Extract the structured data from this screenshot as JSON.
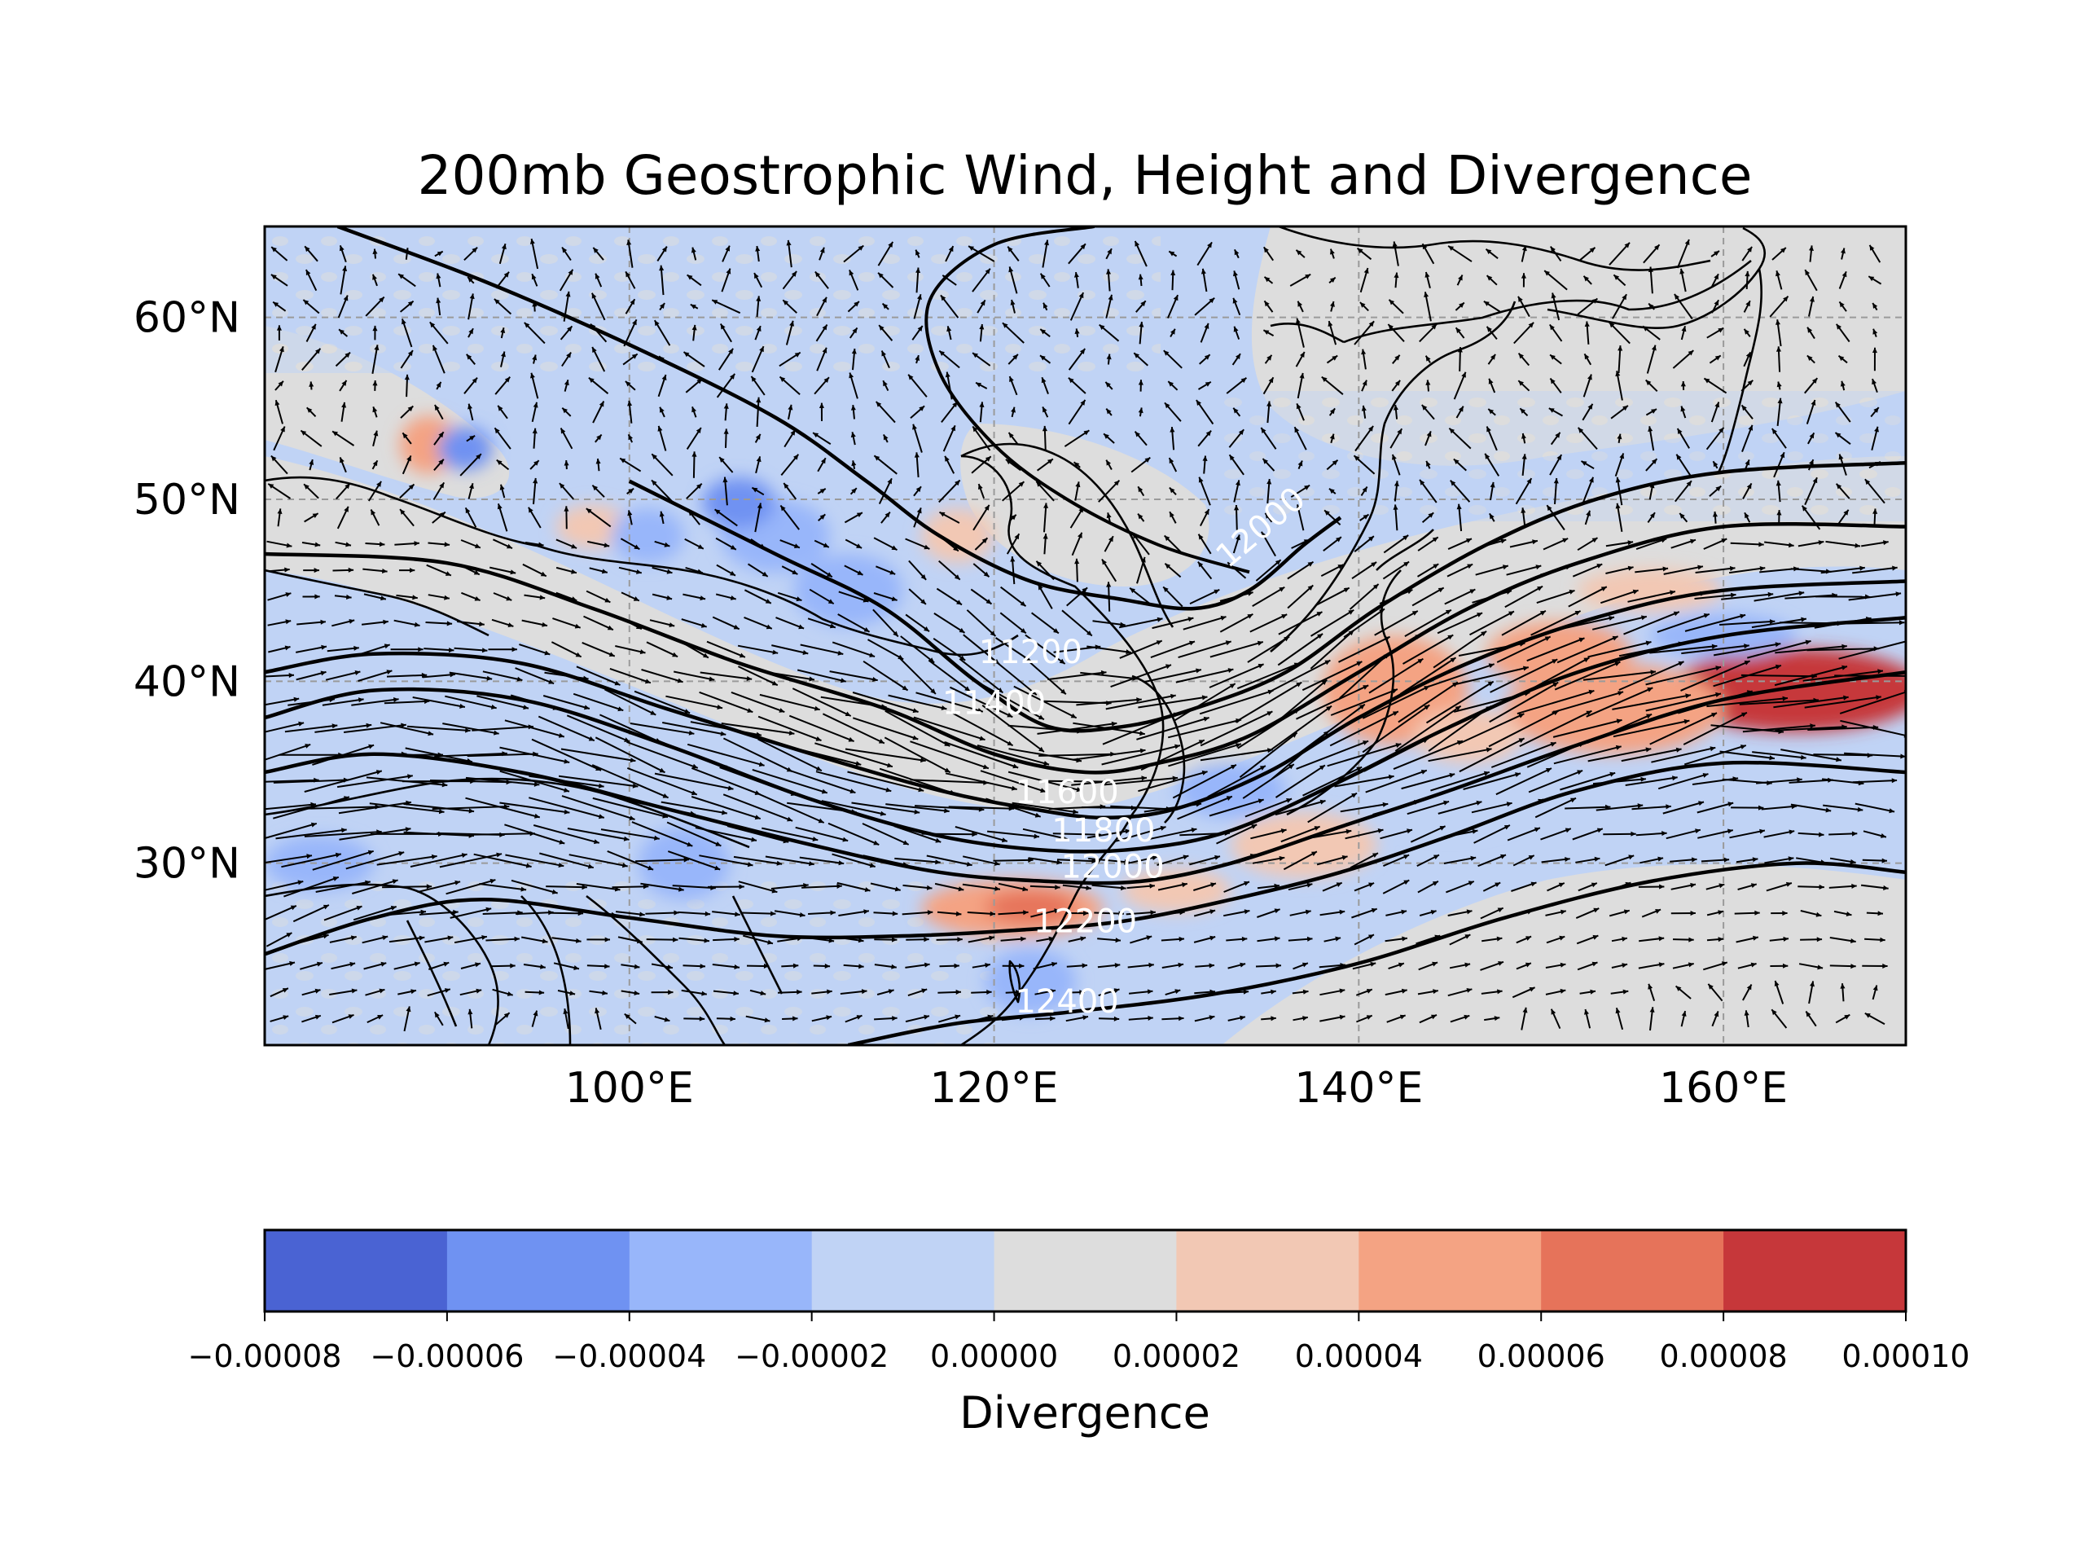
{
  "chart_data": {
    "type": "heatmap",
    "title": "200mb Geostrophic Wind, Height and Divergence",
    "xlim": [
      80,
      170
    ],
    "ylim": [
      20,
      65
    ],
    "x_ticks": [
      100,
      120,
      140,
      160
    ],
    "x_tick_labels": [
      "100°E",
      "120°E",
      "140°E",
      "160°E"
    ],
    "y_ticks": [
      30,
      40,
      50,
      60
    ],
    "y_tick_labels": [
      "30°N",
      "40°N",
      "50°N",
      "60°N"
    ],
    "grid": true,
    "colorbar": {
      "label": "Divergence",
      "levels": [
        -8e-05,
        -6e-05,
        -4e-05,
        -2e-05,
        0.0,
        2e-05,
        4e-05,
        6e-05,
        8e-05,
        0.0001
      ],
      "tick_labels": [
        "−0.00008",
        "−0.00006",
        "−0.00004",
        "−0.00002",
        "0.00000",
        "0.00002",
        "0.00004",
        "0.00006",
        "0.00008",
        "0.00010"
      ],
      "colors": [
        "#4a63d3",
        "#6f92f2",
        "#98b6fa",
        "#c0d3f5",
        "#dddddd",
        "#f2c8b4",
        "#f4a383",
        "#e6735a",
        "#c6373a"
      ]
    },
    "height_contours": [
      {
        "level": 11200,
        "label": "11200",
        "label_at": [
          122,
          41
        ],
        "points": [
          [
            100,
            51
          ],
          [
            108,
            47
          ],
          [
            114,
            44
          ],
          [
            119,
            40
          ],
          [
            123,
            37.5
          ],
          [
            127,
            37.5
          ],
          [
            131,
            38.5
          ],
          [
            136,
            40.5
          ],
          [
            141,
            44
          ],
          [
            147,
            47.5
          ],
          [
            153,
            50
          ],
          [
            160,
            51.5
          ],
          [
            170,
            52
          ]
        ]
      },
      {
        "level": 11400,
        "label": "11400",
        "label_at": [
          120,
          38.2
        ],
        "points": [
          [
            80,
            47
          ],
          [
            90,
            46.5
          ],
          [
            98,
            44
          ],
          [
            106,
            41
          ],
          [
            114,
            38.5
          ],
          [
            120,
            36
          ],
          [
            125,
            35
          ],
          [
            129,
            35.5
          ],
          [
            134,
            37
          ],
          [
            140,
            40.5
          ],
          [
            146,
            44
          ],
          [
            152,
            46.5
          ],
          [
            160,
            48.5
          ],
          [
            170,
            48.5
          ]
        ]
      },
      {
        "level": 11600,
        "label": "11600",
        "label_at": [
          124,
          33.3
        ],
        "points": [
          [
            80,
            40.5
          ],
          [
            86,
            41.5
          ],
          [
            94,
            41
          ],
          [
            102,
            38.5
          ],
          [
            110,
            36
          ],
          [
            117,
            34
          ],
          [
            122,
            33
          ],
          [
            126,
            32.5
          ],
          [
            130,
            33
          ],
          [
            135,
            35
          ],
          [
            140,
            38
          ],
          [
            146,
            41
          ],
          [
            153,
            43.5
          ],
          [
            160,
            45
          ],
          [
            170,
            45.5
          ]
        ]
      },
      {
        "level": 11800,
        "label": "11800",
        "label_at": [
          126,
          31.2
        ],
        "points": [
          [
            80,
            38
          ],
          [
            86,
            39.5
          ],
          [
            94,
            39
          ],
          [
            102,
            36.5
          ],
          [
            110,
            33.5
          ],
          [
            117,
            31.5
          ],
          [
            123,
            30.7
          ],
          [
            128,
            30.8
          ],
          [
            133,
            31.8
          ],
          [
            139,
            34.5
          ],
          [
            145,
            37.5
          ],
          [
            152,
            40.5
          ],
          [
            160,
            42.5
          ],
          [
            170,
            43.5
          ]
        ]
      },
      {
        "level": 12000,
        "label": "12000",
        "label_at": [
          126.5,
          29.2
        ],
        "points": [
          [
            80,
            35
          ],
          [
            86,
            36
          ],
          [
            94,
            35
          ],
          [
            102,
            33
          ],
          [
            110,
            31
          ],
          [
            117,
            29.5
          ],
          [
            123,
            29
          ],
          [
            128,
            29
          ],
          [
            133,
            30
          ],
          [
            139,
            32
          ],
          [
            145,
            34
          ],
          [
            152,
            36.5
          ],
          [
            160,
            39
          ],
          [
            170,
            40.5
          ]
        ]
      },
      {
        "level": 12200,
        "label": "12200",
        "label_at": [
          125,
          26.2
        ],
        "points": [
          [
            80,
            25
          ],
          [
            86,
            27
          ],
          [
            92,
            28
          ],
          [
            100,
            27
          ],
          [
            108,
            26
          ],
          [
            115,
            26
          ],
          [
            121,
            26.3
          ],
          [
            127,
            26.8
          ],
          [
            133,
            28
          ],
          [
            139,
            29.5
          ],
          [
            145,
            31.5
          ],
          [
            152,
            34
          ],
          [
            160,
            35.5
          ],
          [
            170,
            35
          ]
        ]
      },
      {
        "level": 12400,
        "label": "12400",
        "label_at": [
          124,
          21.8
        ],
        "points": [
          [
            112,
            20
          ],
          [
            118,
            21.2
          ],
          [
            124,
            21.8
          ],
          [
            132,
            22.8
          ],
          [
            140,
            24.5
          ],
          [
            148,
            27
          ],
          [
            156,
            29
          ],
          [
            164,
            30
          ],
          [
            170,
            29.5
          ]
        ]
      }
    ],
    "lone_contour": {
      "label": "12000",
      "label_at": [
        135,
        48
      ],
      "points": [
        [
          84,
          65
        ],
        [
          92,
          62
        ],
        [
          100,
          58.5
        ],
        [
          108,
          54.5
        ],
        [
          113,
          51
        ],
        [
          117,
          48
        ],
        [
          122,
          45.5
        ],
        [
          127,
          44.5
        ],
        [
          131,
          44
        ],
        [
          134,
          45
        ],
        [
          137,
          47.5
        ],
        [
          139,
          49
        ]
      ]
    },
    "trough_line": [
      [
        125.5,
        65
      ],
      [
        120,
        64
      ],
      [
        116.5,
        61
      ],
      [
        117,
        57
      ],
      [
        120,
        53
      ],
      [
        124,
        50
      ],
      [
        129,
        47.5
      ],
      [
        134,
        46
      ]
    ],
    "divergence_patches": [
      {
        "center": [
          164,
          39.5
        ],
        "radius": [
          7,
          2.3
        ],
        "value": 8e-05
      },
      {
        "center": [
          164,
          39.3
        ],
        "radius": [
          5,
          1.4
        ],
        "value": 9e-05
      },
      {
        "center": [
          154,
          38.5
        ],
        "radius": [
          6,
          2.5
        ],
        "value": 5e-05
      },
      {
        "center": [
          151,
          41.5
        ],
        "radius": [
          4,
          1.8
        ],
        "value": 4e-05
      },
      {
        "center": [
          142,
          39.5
        ],
        "radius": [
          4,
          3
        ],
        "value": 4e-05
      },
      {
        "center": [
          146,
          37
        ],
        "radius": [
          3,
          1.5
        ],
        "value": 3e-05
      },
      {
        "center": [
          121,
          27.5
        ],
        "radius": [
          5,
          1.6
        ],
        "value": 4e-05
      },
      {
        "center": [
          122,
          27.6
        ],
        "radius": [
          2.5,
          0.9
        ],
        "value": 6e-05
      },
      {
        "center": [
          130,
          28.5
        ],
        "radius": [
          3,
          1.2
        ],
        "value": 2e-05
      },
      {
        "center": [
          137,
          31
        ],
        "radius": [
          4,
          1.8
        ],
        "value": 2e-05
      },
      {
        "center": [
          156,
          45
        ],
        "radius": [
          4,
          1.2
        ],
        "value": 2e-05
      },
      {
        "center": [
          89,
          53
        ],
        "radius": [
          1.6,
          1.6
        ],
        "value": 4e-05
      },
      {
        "center": [
          98,
          48.5
        ],
        "radius": [
          2,
          1.2
        ],
        "value": 2e-05
      },
      {
        "center": [
          108,
          48
        ],
        "radius": [
          3,
          2
        ],
        "value": -4e-05
      },
      {
        "center": [
          106,
          49.8
        ],
        "radius": [
          2,
          1.4
        ],
        "value": -6e-05
      },
      {
        "center": [
          101,
          48
        ],
        "radius": [
          2,
          1.5
        ],
        "value": -4e-05
      },
      {
        "center": [
          112,
          45
        ],
        "radius": [
          3,
          2
        ],
        "value": -4e-05
      },
      {
        "center": [
          91,
          52.8
        ],
        "radius": [
          1.5,
          1.2
        ],
        "value": -6e-05
      },
      {
        "center": [
          83,
          30
        ],
        "radius": [
          3,
          1.5
        ],
        "value": -4e-05
      },
      {
        "center": [
          103,
          30
        ],
        "radius": [
          2.5,
          2
        ],
        "value": -4e-05
      },
      {
        "center": [
          122,
          23.5
        ],
        "radius": [
          2.5,
          1.8
        ],
        "value": -4e-05
      },
      {
        "center": [
          160,
          42.5
        ],
        "radius": [
          4,
          1.2
        ],
        "value": -4e-05
      },
      {
        "center": [
          133,
          34
        ],
        "radius": [
          3,
          1.5
        ],
        "value": -4e-05
      },
      {
        "center": [
          145,
          33
        ],
        "radius": [
          4,
          1.3
        ],
        "value": -2e-05
      },
      {
        "center": [
          118,
          48
        ],
        "radius": [
          2,
          1.5
        ],
        "value": 2e-05
      }
    ]
  }
}
